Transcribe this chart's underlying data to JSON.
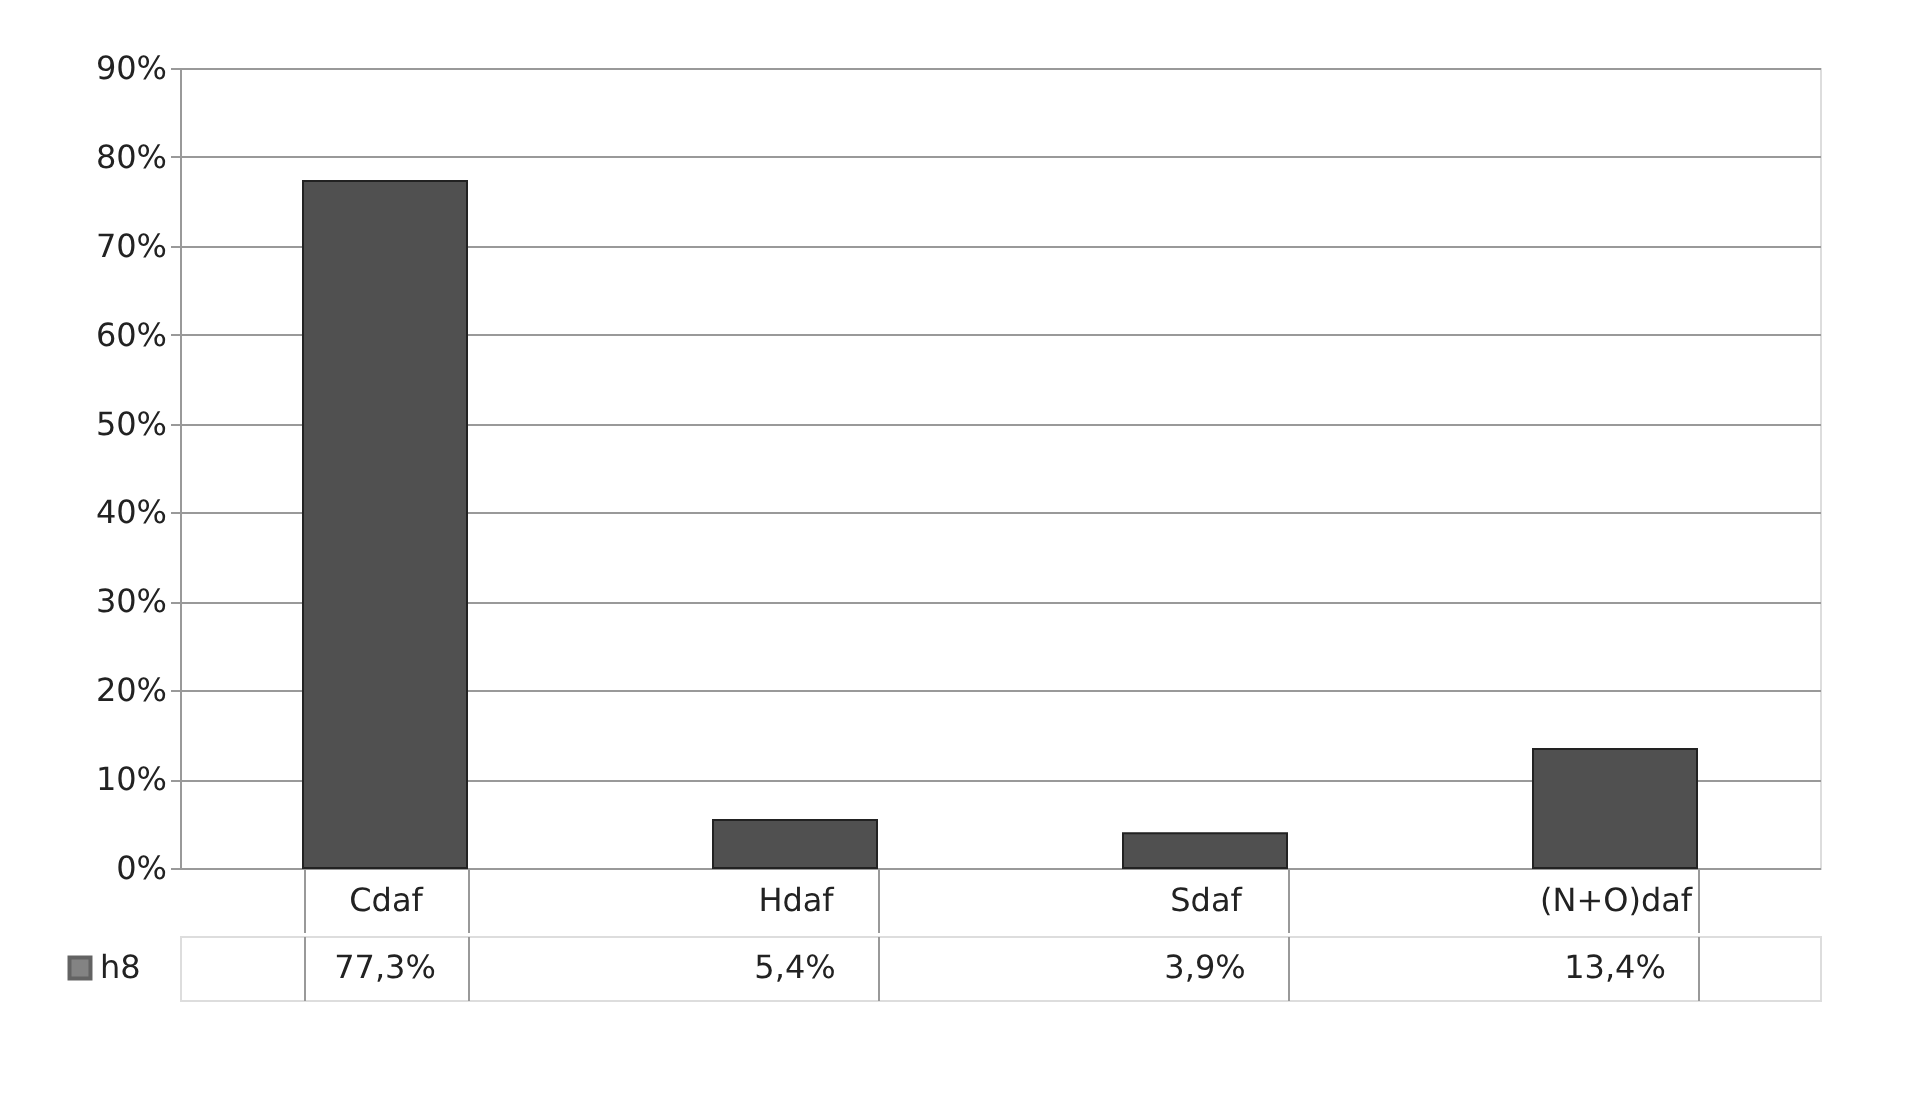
{
  "chart_data": {
    "type": "bar",
    "categories": [
      "Cdaf",
      "Hdaf",
      "Sdaf",
      "(N+O)daf"
    ],
    "series": [
      {
        "name": "h8",
        "color": "#505050",
        "values": [
          77.3,
          5.4,
          3.9,
          13.4
        ],
        "value_labels": [
          "77,3%",
          "5,4%",
          "3,9%",
          "13,4%"
        ]
      }
    ],
    "ylim": [
      0,
      90
    ],
    "yticks": [
      {
        "value": 0,
        "label": "0%"
      },
      {
        "value": 10,
        "label": "10%"
      },
      {
        "value": 20,
        "label": "20%"
      },
      {
        "value": 30,
        "label": "30%"
      },
      {
        "value": 40,
        "label": "40%"
      },
      {
        "value": 50,
        "label": "50%"
      },
      {
        "value": 60,
        "label": "60%"
      },
      {
        "value": 70,
        "label": "70%"
      },
      {
        "value": 80,
        "label": "80%"
      },
      {
        "value": 90,
        "label": "90%"
      }
    ],
    "grid": "y",
    "legend": "bottom"
  }
}
